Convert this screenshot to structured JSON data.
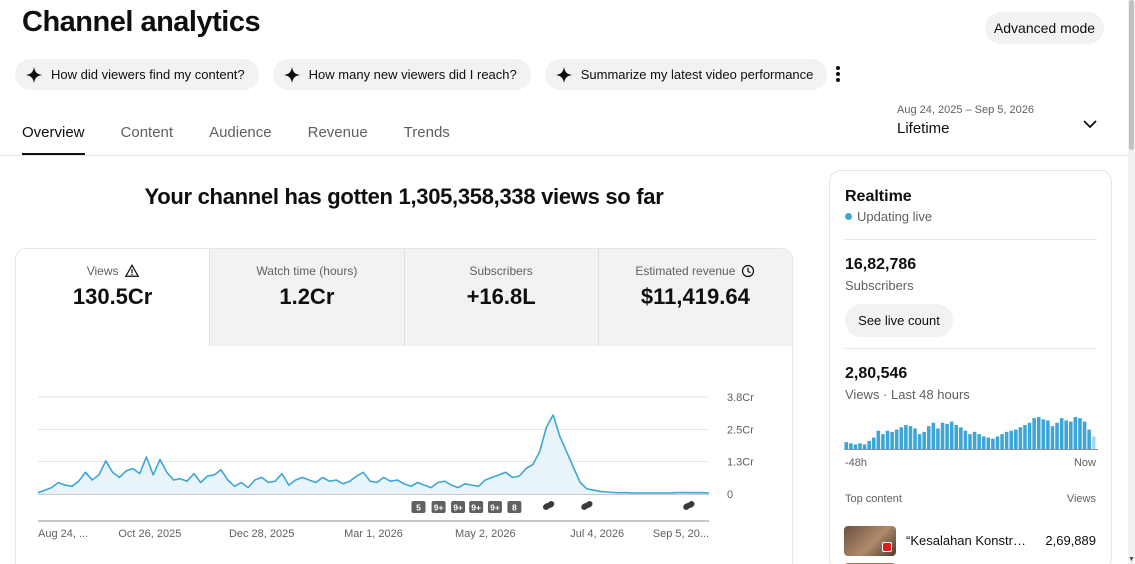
{
  "page": {
    "title": "Channel analytics",
    "advanced_mode": "Advanced mode"
  },
  "chips": [
    {
      "icon": "sparkle-icon",
      "label": "How did viewers find my content?"
    },
    {
      "icon": "sparkle-icon",
      "label": "How many new viewers did I reach?"
    },
    {
      "icon": "sparkle-icon",
      "label": "Summarize my latest video performance"
    }
  ],
  "tabs": [
    {
      "label": "Overview",
      "active": true
    },
    {
      "label": "Content",
      "active": false
    },
    {
      "label": "Audience",
      "active": false
    },
    {
      "label": "Revenue",
      "active": false
    },
    {
      "label": "Trends",
      "active": false
    }
  ],
  "date_picker": {
    "range": "Aug 24, 2025 – Sep 5, 2026",
    "label": "Lifetime"
  },
  "headline": "Your channel has gotten 1,305,358,338 views so far",
  "metrics": [
    {
      "label": "Views",
      "value": "130.5Cr",
      "icon": "warning-icon",
      "active": true
    },
    {
      "label": "Watch time (hours)",
      "value": "1.2Cr",
      "icon": "",
      "active": false
    },
    {
      "label": "Subscribers",
      "value": "+16.8L",
      "icon": "",
      "active": false
    },
    {
      "label": "Estimated revenue",
      "value": "$11,419.64",
      "icon": "clock-icon",
      "active": false
    }
  ],
  "chart_data": {
    "type": "area",
    "x_tick_labels": [
      "Aug 24, ...",
      "Oct 26, 2025",
      "Dec 28, 2025",
      "Mar 1, 2026",
      "May 2, 2026",
      "Jul 4, 2026",
      "Sep 5, 20..."
    ],
    "y_tick_labels": [
      "3.8Cr",
      "2.5Cr",
      "1.3Cr",
      "0"
    ],
    "ylim": [
      0,
      3.8
    ],
    "y_unit": "Cr",
    "color": "#3ea6d4",
    "fill": "#e8f4fa",
    "grid": true,
    "values": [
      0.05,
      0.15,
      0.25,
      0.45,
      0.35,
      0.3,
      0.5,
      0.85,
      0.55,
      0.75,
      1.3,
      0.85,
      0.65,
      0.9,
      1.0,
      0.8,
      1.45,
      0.75,
      1.35,
      0.85,
      0.55,
      0.6,
      0.5,
      0.8,
      0.45,
      0.7,
      0.75,
      0.95,
      0.55,
      0.3,
      0.45,
      0.25,
      0.55,
      0.65,
      0.45,
      0.5,
      0.8,
      0.35,
      0.55,
      0.65,
      0.55,
      0.45,
      0.65,
      0.5,
      0.55,
      0.4,
      0.5,
      0.7,
      0.85,
      0.5,
      0.45,
      0.65,
      0.5,
      0.55,
      0.4,
      0.3,
      0.45,
      0.35,
      0.25,
      0.45,
      0.5,
      0.35,
      0.25,
      0.4,
      0.35,
      0.3,
      0.55,
      0.65,
      0.75,
      0.85,
      0.65,
      0.7,
      1.0,
      1.15,
      1.65,
      2.6,
      3.1,
      2.25,
      1.65,
      1.05,
      0.45,
      0.2,
      0.15,
      0.1,
      0.08,
      0.06,
      0.05,
      0.05,
      0.04,
      0.04,
      0.04,
      0.04,
      0.04,
      0.04,
      0.05,
      0.06,
      0.05,
      0.05,
      0.05,
      0.04
    ],
    "markers": [
      {
        "label": "5",
        "pos": 0.567
      },
      {
        "label": "9+",
        "pos": 0.597
      },
      {
        "label": "9+",
        "pos": 0.626
      },
      {
        "label": "9+",
        "pos": 0.653
      },
      {
        "label": "9+",
        "pos": 0.681
      },
      {
        "label": "8",
        "pos": 0.71
      }
    ],
    "shorts_markers": [
      0.761,
      0.818,
      0.97
    ]
  },
  "realtime": {
    "title": "Realtime",
    "status": "Updating live",
    "subscribers_value": "16,82,786",
    "subscribers_label": "Subscribers",
    "live_count_button": "See live count",
    "views_value": "2,80,546",
    "views_label": "Views · Last 48 hours",
    "chart_left_label": "-48h",
    "chart_right_label": "Now",
    "bars": [
      6,
      5,
      4,
      5,
      4,
      7,
      10,
      16,
      13,
      16,
      15,
      17,
      19,
      21,
      20,
      18,
      13,
      15,
      20,
      23,
      18,
      23,
      22,
      24,
      21,
      19,
      16,
      13,
      15,
      13,
      11,
      10,
      9,
      11,
      13,
      15,
      16,
      17,
      19,
      21,
      23,
      27,
      28,
      26,
      25,
      20,
      23,
      27,
      25,
      24,
      28,
      27,
      24,
      17,
      11
    ],
    "bar_color": "#3ea6d4",
    "top_content_label": "Top content",
    "top_views_label": "Views",
    "top_video_title": "“Kesalahan Konstru…",
    "top_video_views": "2,69,889"
  }
}
